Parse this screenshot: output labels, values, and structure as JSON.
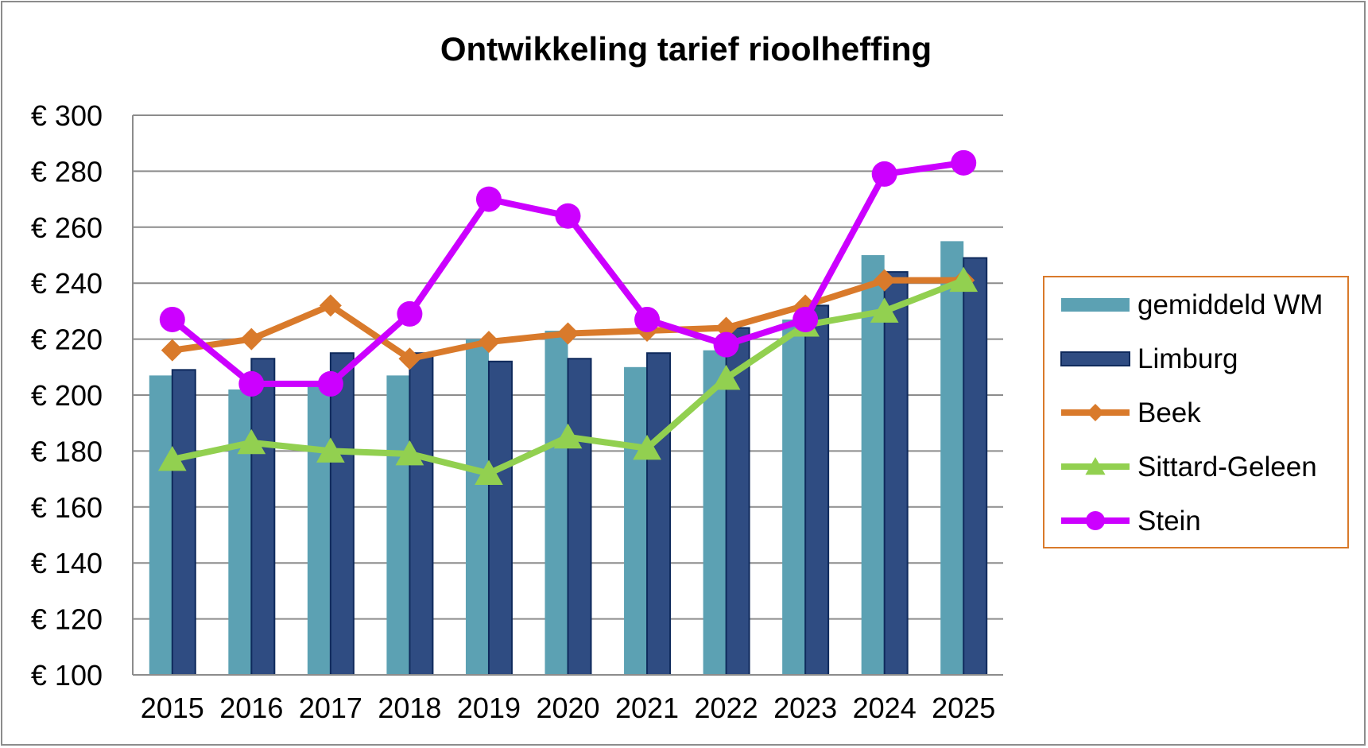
{
  "chart_data": {
    "type": "bar",
    "title": "Ontwikkeling tarief rioolheffing",
    "xlabel": "",
    "ylabel": "",
    "categories": [
      "2015",
      "2016",
      "2017",
      "2018",
      "2019",
      "2020",
      "2021",
      "2022",
      "2023",
      "2024",
      "2025"
    ],
    "ylim": [
      100,
      300
    ],
    "y_ticks": [
      100,
      120,
      140,
      160,
      180,
      200,
      220,
      240,
      260,
      280,
      300
    ],
    "y_tick_labels": [
      "€ 100",
      "€ 120",
      "€ 140",
      "€ 160",
      "€ 180",
      "€ 200",
      "€ 220",
      "€ 240",
      "€ 260",
      "€ 280",
      "€ 300"
    ],
    "grid": true,
    "legend_position": "right",
    "series": [
      {
        "name": "gemiddeld WM",
        "kind": "bar",
        "color": "#5ca1b3",
        "values": [
          207,
          202,
          204,
          207,
          220,
          223,
          210,
          216,
          227,
          250,
          255
        ]
      },
      {
        "name": "Limburg",
        "kind": "bar",
        "color": "#2f4c82",
        "values": [
          209,
          213,
          215,
          215,
          212,
          213,
          215,
          224,
          232,
          244,
          249
        ]
      },
      {
        "name": "Beek",
        "kind": "line",
        "marker": "diamond",
        "color": "#d97a2b",
        "values": [
          216,
          220,
          232,
          213,
          219,
          222,
          223,
          224,
          232,
          241,
          241
        ]
      },
      {
        "name": "Sittard-Geleen",
        "kind": "line",
        "marker": "triangle",
        "color": "#92d050",
        "values": [
          177,
          183,
          180,
          179,
          172,
          185,
          181,
          206,
          225,
          230,
          241
        ]
      },
      {
        "name": "Stein",
        "kind": "line",
        "marker": "circle",
        "color": "#cc00ff",
        "values": [
          227,
          204,
          204,
          229,
          270,
          264,
          227,
          218,
          227,
          279,
          283
        ]
      }
    ]
  }
}
